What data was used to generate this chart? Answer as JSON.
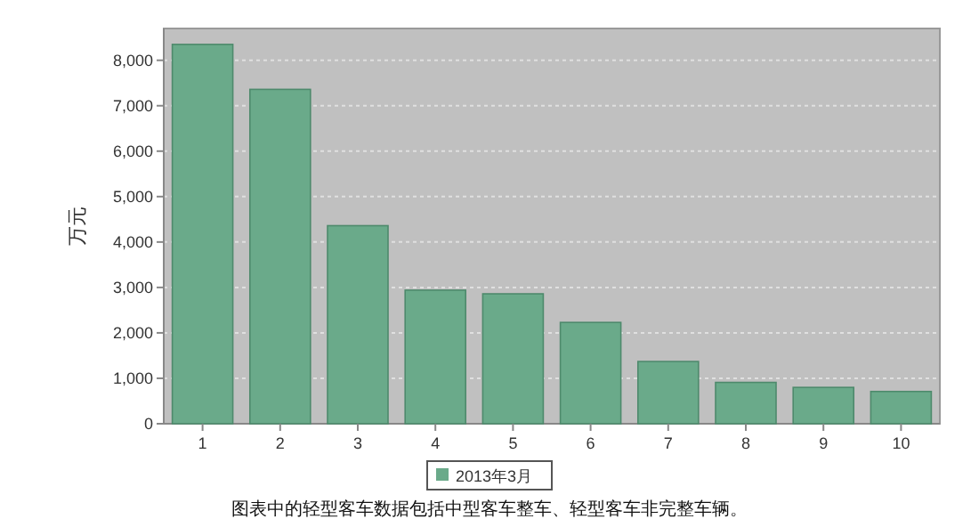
{
  "chart_data": {
    "type": "bar",
    "ylabel": "万元",
    "categories": [
      "1",
      "2",
      "3",
      "4",
      "5",
      "6",
      "7",
      "8",
      "9",
      "10"
    ],
    "series": [
      {
        "name": "2013年3月",
        "color": "#6aaa8a",
        "values": [
          8350,
          7360,
          4360,
          2940,
          2860,
          2230,
          1370,
          910,
          800,
          710
        ]
      }
    ],
    "ylim": [
      0,
      8700
    ],
    "yticks": [
      {
        "value": 0,
        "label": "0"
      },
      {
        "value": 1000,
        "label": "1,000"
      },
      {
        "value": 2000,
        "label": "2,000"
      },
      {
        "value": 3000,
        "label": "3,000"
      },
      {
        "value": 4000,
        "label": "4,000"
      },
      {
        "value": 5000,
        "label": "5,000"
      },
      {
        "value": 6000,
        "label": "6,000"
      },
      {
        "value": 7000,
        "label": "7,000"
      },
      {
        "value": 8000,
        "label": "8,000"
      }
    ],
    "grid": "y",
    "legend": "bottom",
    "annotations": [
      "图表中的轻型客车数据包括中型客车整车、轻型客车非完整车辆。"
    ]
  }
}
